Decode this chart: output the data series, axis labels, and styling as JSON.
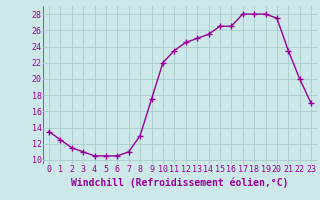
{
  "x": [
    0,
    1,
    2,
    3,
    4,
    5,
    6,
    7,
    8,
    9,
    10,
    11,
    12,
    13,
    14,
    15,
    16,
    17,
    18,
    19,
    20,
    21,
    22,
    23
  ],
  "y": [
    13.5,
    12.5,
    11.5,
    11.0,
    10.5,
    10.5,
    10.5,
    11.0,
    13.0,
    17.5,
    22.0,
    23.5,
    24.5,
    25.0,
    25.5,
    26.5,
    26.5,
    28.0,
    28.0,
    28.0,
    27.5,
    23.5,
    20.0,
    17.0
  ],
  "line_color": "#990099",
  "marker": "+",
  "marker_size": 4,
  "marker_edge_width": 1.0,
  "background_color": "#cce8e8",
  "grid_color": "#aacccc",
  "xlabel": "Windchill (Refroidissement éolien,°C)",
  "xlabel_fontsize": 7,
  "xlim": [
    -0.5,
    23.5
  ],
  "ylim": [
    9.5,
    29.0
  ],
  "yticks": [
    10,
    12,
    14,
    16,
    18,
    20,
    22,
    24,
    26,
    28
  ],
  "xticks": [
    0,
    1,
    2,
    3,
    4,
    5,
    6,
    7,
    8,
    9,
    10,
    11,
    12,
    13,
    14,
    15,
    16,
    17,
    18,
    19,
    20,
    21,
    22,
    23
  ],
  "tick_fontsize": 6,
  "line_width": 1.0
}
